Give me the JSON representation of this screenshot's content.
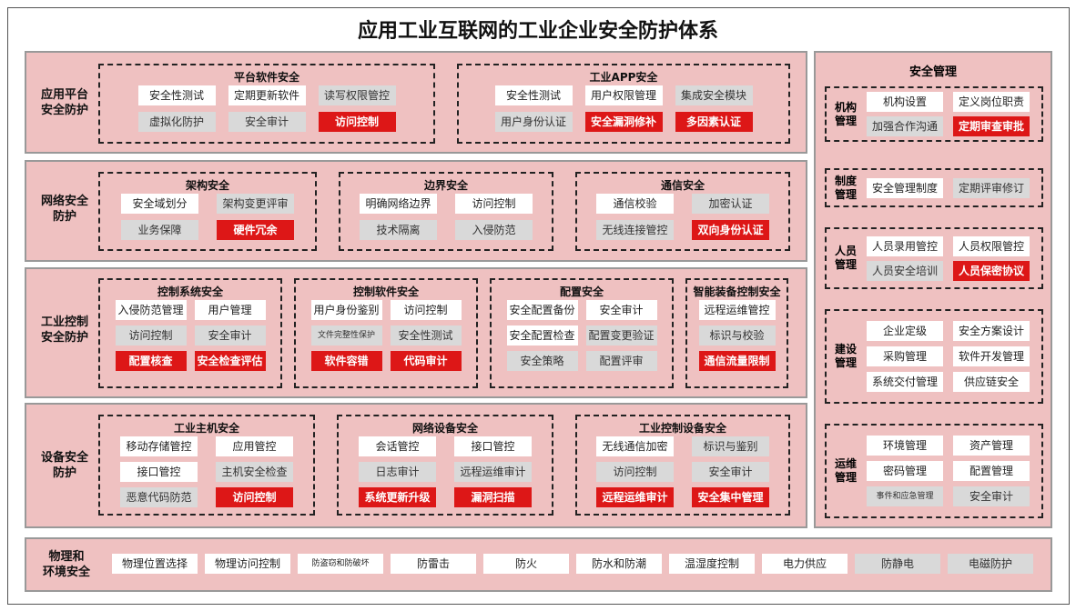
{
  "title": "应用工业互联网的工业企业安全防护体系",
  "colors": {
    "background": "#efc1c1",
    "highlight": "#dd1717",
    "gray": "#d9d9d9",
    "white": "#ffffff"
  },
  "rows": [
    {
      "label": "应用平台\n安全防护",
      "groups": [
        {
          "title": "平台软件安全",
          "cols": 3,
          "items": [
            [
              "安全性测试",
              "w"
            ],
            [
              "定期更新软件",
              "w"
            ],
            [
              "读写权限管控",
              "g"
            ],
            [
              "虚拟化防护",
              "g"
            ],
            [
              "安全审计",
              "g"
            ],
            [
              "访问控制",
              "r"
            ]
          ]
        },
        {
          "title": "工业APP安全",
          "cols": 3,
          "items": [
            [
              "安全性测试",
              "w"
            ],
            [
              "用户权限管理",
              "w"
            ],
            [
              "集成安全模块",
              "g"
            ],
            [
              "用户身份认证",
              "g"
            ],
            [
              "安全漏洞修补",
              "r"
            ],
            [
              "多因素认证",
              "r"
            ]
          ]
        }
      ]
    },
    {
      "label": "网络安全\n防护",
      "groups": [
        {
          "title": "架构安全",
          "cols": 2,
          "items": [
            [
              "安全域划分",
              "w"
            ],
            [
              "架构变更评审",
              "g"
            ],
            [
              "业务保障",
              "g"
            ],
            [
              "硬件冗余",
              "r"
            ]
          ]
        },
        {
          "title": "边界安全",
          "cols": 2,
          "items": [
            [
              "明确网络边界",
              "w"
            ],
            [
              "访问控制",
              "w"
            ],
            [
              "技术隔离",
              "g"
            ],
            [
              "入侵防范",
              "g"
            ]
          ]
        },
        {
          "title": "通信安全",
          "cols": 2,
          "items": [
            [
              "通信校验",
              "w"
            ],
            [
              "加密认证",
              "g"
            ],
            [
              "无线连接管控",
              "g"
            ],
            [
              "双向身份认证",
              "r"
            ]
          ]
        }
      ]
    },
    {
      "label": "工业控制\n安全防护",
      "groups": [
        {
          "title": "控制系统安全",
          "cols": 2,
          "items": [
            [
              "入侵防范管理",
              "w"
            ],
            [
              "用户管理",
              "w"
            ],
            [
              "访问控制",
              "g"
            ],
            [
              "安全审计",
              "g"
            ],
            [
              "配置核查",
              "r"
            ],
            [
              "安全检查评估",
              "r"
            ]
          ]
        },
        {
          "title": "控制软件安全",
          "cols": 2,
          "items": [
            [
              "用户身份鉴别",
              "w"
            ],
            [
              "访问控制",
              "w"
            ],
            [
              "文件完整性保护",
              "g"
            ],
            [
              "安全性测试",
              "g"
            ],
            [
              "软件容错",
              "r"
            ],
            [
              "代码审计",
              "r"
            ]
          ]
        },
        {
          "title": "配置安全",
          "cols": 2,
          "items": [
            [
              "安全配置备份",
              "w"
            ],
            [
              "安全审计",
              "w"
            ],
            [
              "安全配置检查",
              "w"
            ],
            [
              "配置变更验证",
              "g"
            ],
            [
              "安全策略",
              "g"
            ],
            [
              "配置评审",
              "g"
            ]
          ]
        },
        {
          "title": "智能装备控制安全",
          "cols": 1,
          "items": [
            [
              "远程运维管控",
              "w"
            ],
            [
              "标识与校验",
              "g"
            ],
            [
              "通信流量限制",
              "r"
            ]
          ]
        }
      ]
    },
    {
      "label": "设备安全\n防护",
      "groups": [
        {
          "title": "工业主机安全",
          "cols": 2,
          "items": [
            [
              "移动存储管控",
              "w"
            ],
            [
              "应用管控",
              "w"
            ],
            [
              "接口管控",
              "w"
            ],
            [
              "主机安全检查",
              "g"
            ],
            [
              "恶意代码防范",
              "g"
            ],
            [
              "访问控制",
              "r"
            ]
          ]
        },
        {
          "title": "网络设备安全",
          "cols": 2,
          "items": [
            [
              "会话管控",
              "w"
            ],
            [
              "接口管控",
              "w"
            ],
            [
              "日志审计",
              "g"
            ],
            [
              "远程运维审计",
              "g"
            ],
            [
              "系统更新升级",
              "r"
            ],
            [
              "漏洞扫描",
              "r"
            ]
          ]
        },
        {
          "title": "工业控制设备安全",
          "cols": 2,
          "items": [
            [
              "无线通信加密",
              "w"
            ],
            [
              "标识与鉴别",
              "g"
            ],
            [
              "访问控制",
              "g"
            ],
            [
              "安全审计",
              "g"
            ],
            [
              "远程运维审计",
              "r"
            ],
            [
              "安全集中管理",
              "r"
            ]
          ]
        }
      ]
    }
  ],
  "physical": {
    "label": "物理和\n环境安全",
    "items": [
      [
        "物理位置选择",
        "w"
      ],
      [
        "物理访问控制",
        "w"
      ],
      [
        "防盗窃和防破坏",
        "w"
      ],
      [
        "防雷击",
        "w"
      ],
      [
        "防火",
        "w"
      ],
      [
        "防水和防潮",
        "w"
      ],
      [
        "温湿度控制",
        "w"
      ],
      [
        "电力供应",
        "w"
      ],
      [
        "防静电",
        "g"
      ],
      [
        "电磁防护",
        "g"
      ]
    ]
  },
  "management": {
    "title": "安全管理",
    "groups": [
      {
        "label": "机构\n管理",
        "items": [
          [
            "机构设置",
            "w"
          ],
          [
            "定义岗位职责",
            "w"
          ],
          [
            "加强合作沟通",
            "g"
          ],
          [
            "定期审查审批",
            "r"
          ]
        ]
      },
      {
        "label": "制度\n管理",
        "items": [
          [
            "安全管理制度",
            "w"
          ],
          [
            "定期评审修订",
            "g"
          ]
        ]
      },
      {
        "label": "人员\n管理",
        "items": [
          [
            "人员录用管控",
            "w"
          ],
          [
            "人员权限管控",
            "w"
          ],
          [
            "人员安全培训",
            "g"
          ],
          [
            "人员保密协议",
            "r"
          ]
        ]
      },
      {
        "label": "建设\n管理",
        "items": [
          [
            "企业定级",
            "w"
          ],
          [
            "安全方案设计",
            "w"
          ],
          [
            "采购管理",
            "w"
          ],
          [
            "软件开发管理",
            "w"
          ],
          [
            "系统交付管理",
            "w"
          ],
          [
            "供应链安全",
            "w"
          ]
        ]
      },
      {
        "label": "运维\n管理",
        "items": [
          [
            "环境管理",
            "w"
          ],
          [
            "资产管理",
            "w"
          ],
          [
            "密码管理",
            "w"
          ],
          [
            "配置管理",
            "w"
          ],
          [
            "事件和应急管理",
            "g"
          ],
          [
            "安全审计",
            "g"
          ]
        ]
      }
    ]
  }
}
